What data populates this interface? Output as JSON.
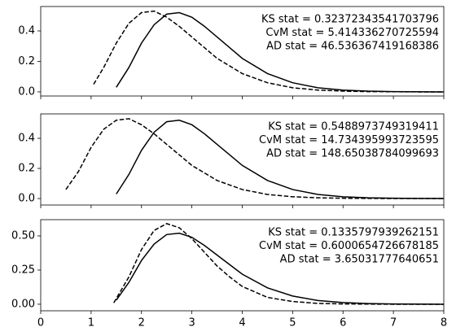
{
  "chart_data": [
    {
      "type": "line",
      "xlim": [
        0,
        8
      ],
      "ylim": [
        -0.027,
        0.56
      ],
      "xticks": [
        0,
        1,
        2,
        3,
        4,
        5,
        6,
        7,
        8
      ],
      "yticks": [
        {
          "value": 0,
          "label": "0.0"
        },
        {
          "value": 0.2,
          "label": "0.2"
        },
        {
          "value": 0.4,
          "label": "0.4"
        }
      ],
      "annotations": [
        "KS stat = 0.32372343541703796",
        "CvM stat = 5.414336270725594",
        "AD stat = 46.536367419168386"
      ],
      "series": [
        {
          "color": "#000000",
          "dash": false,
          "x": [
            1.5,
            1.75,
            2.0,
            2.25,
            2.5,
            2.75,
            3.0,
            3.25,
            3.5,
            3.75,
            4.0,
            4.5,
            5.0,
            5.5,
            6.0,
            6.5,
            7.0,
            8.0
          ],
          "values": [
            0.03,
            0.16,
            0.32,
            0.44,
            0.51,
            0.52,
            0.49,
            0.43,
            0.36,
            0.29,
            0.22,
            0.12,
            0.06,
            0.027,
            0.012,
            0.005,
            0.002,
            0.0
          ]
        },
        {
          "color": "#000000",
          "dash": true,
          "x": [
            1.05,
            1.25,
            1.5,
            1.75,
            2.0,
            2.25,
            2.5,
            2.75,
            3.0,
            3.25,
            3.5,
            4.0,
            4.5,
            5.0,
            5.5,
            6.0,
            6.5,
            7.5,
            8.0
          ],
          "values": [
            0.05,
            0.16,
            0.32,
            0.45,
            0.52,
            0.53,
            0.49,
            0.43,
            0.36,
            0.29,
            0.22,
            0.12,
            0.06,
            0.027,
            0.012,
            0.005,
            0.002,
            0.0,
            0.0
          ]
        }
      ]
    },
    {
      "type": "line",
      "xlim": [
        0,
        8
      ],
      "ylim": [
        -0.043,
        0.562
      ],
      "xticks": [
        0,
        1,
        2,
        3,
        4,
        5,
        6,
        7,
        8
      ],
      "yticks": [
        {
          "value": 0,
          "label": "0.0"
        },
        {
          "value": 0.2,
          "label": "0.2"
        },
        {
          "value": 0.4,
          "label": "0.4"
        }
      ],
      "annotations": [
        "KS stat = 0.5488973749319411",
        "CvM stat = 14.734395993723595",
        "AD stat = 148.65038784099693"
      ],
      "series": [
        {
          "color": "#000000",
          "dash": false,
          "x": [
            1.5,
            1.75,
            2.0,
            2.25,
            2.5,
            2.75,
            3.0,
            3.25,
            3.5,
            3.75,
            4.0,
            4.5,
            5.0,
            5.5,
            6.0,
            6.5,
            7.0,
            8.0
          ],
          "values": [
            0.03,
            0.16,
            0.32,
            0.44,
            0.51,
            0.52,
            0.49,
            0.43,
            0.36,
            0.29,
            0.22,
            0.12,
            0.06,
            0.027,
            0.012,
            0.005,
            0.002,
            0.0
          ]
        },
        {
          "color": "#000000",
          "dash": true,
          "x": [
            0.5,
            0.75,
            1.0,
            1.25,
            1.5,
            1.75,
            2.0,
            2.25,
            2.5,
            2.75,
            3.0,
            3.5,
            4.0,
            4.5,
            5.0,
            5.5,
            6.0,
            7.0,
            8.0
          ],
          "values": [
            0.06,
            0.18,
            0.34,
            0.46,
            0.52,
            0.53,
            0.49,
            0.43,
            0.36,
            0.29,
            0.22,
            0.12,
            0.06,
            0.027,
            0.012,
            0.005,
            0.002,
            0.0,
            0.0
          ]
        }
      ]
    },
    {
      "type": "line",
      "xlim": [
        0,
        8
      ],
      "ylim": [
        -0.048,
        0.619
      ],
      "xticks": [
        0,
        1,
        2,
        3,
        4,
        5,
        6,
        7,
        8
      ],
      "yticks": [
        {
          "value": 0,
          "label": "0.00"
        },
        {
          "value": 0.25,
          "label": "0.25"
        },
        {
          "value": 0.5,
          "label": "0.50"
        }
      ],
      "annotations": [
        "KS stat = 0.1335797939262151",
        "CvM stat = 0.6000654726678185",
        "AD stat = 3.65031777640651"
      ],
      "series": [
        {
          "color": "#000000",
          "dash": false,
          "x": [
            1.5,
            1.75,
            2.0,
            2.25,
            2.5,
            2.75,
            3.0,
            3.25,
            3.5,
            3.75,
            4.0,
            4.5,
            5.0,
            5.5,
            6.0,
            6.5,
            7.0,
            8.0
          ],
          "values": [
            0.03,
            0.16,
            0.32,
            0.44,
            0.51,
            0.52,
            0.49,
            0.43,
            0.36,
            0.29,
            0.22,
            0.12,
            0.06,
            0.027,
            0.012,
            0.005,
            0.002,
            0.0
          ]
        },
        {
          "color": "#000000",
          "dash": true,
          "x": [
            1.45,
            1.75,
            2.0,
            2.25,
            2.5,
            2.75,
            3.0,
            3.25,
            3.5,
            3.75,
            4.0,
            4.5,
            5.0,
            5.5,
            6.0,
            7.0,
            8.0
          ],
          "values": [
            0.01,
            0.2,
            0.4,
            0.54,
            0.59,
            0.56,
            0.48,
            0.38,
            0.28,
            0.2,
            0.13,
            0.05,
            0.02,
            0.006,
            0.002,
            0.0,
            0.0
          ]
        }
      ]
    }
  ]
}
